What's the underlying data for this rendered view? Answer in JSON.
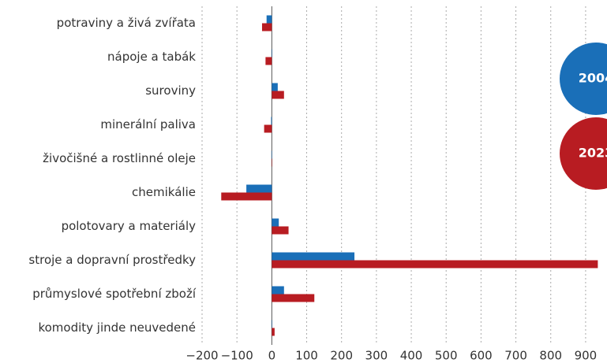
{
  "chart_data": {
    "type": "bar",
    "orientation": "horizontal",
    "categories": [
      "potraviny a živá zvířata",
      "nápoje a tabák",
      "suroviny",
      "minerální paliva",
      "živočišné a rostlinné oleje",
      "chemikálie",
      "polotovary a materiály",
      "stroje a dopravní prostředky",
      "průmyslové spotřební zboží",
      "komodity jinde neuvedené"
    ],
    "series": [
      {
        "name": "2004",
        "color": "#1a6fb8",
        "values": [
          -15,
          0,
          17,
          -2,
          -1,
          -73,
          20,
          237,
          35,
          0
        ]
      },
      {
        "name": "2023",
        "color": "#b81c22",
        "values": [
          -28,
          -18,
          35,
          -22,
          0,
          -145,
          48,
          935,
          122,
          8
        ]
      }
    ],
    "xlim": [
      -200,
      950
    ],
    "xticks": [
      {
        "value": -200,
        "label": "−200"
      },
      {
        "value": -100,
        "label": "−100"
      },
      0,
      100,
      200,
      300,
      400,
      500,
      600,
      700,
      800,
      900
    ],
    "grid": true
  }
}
